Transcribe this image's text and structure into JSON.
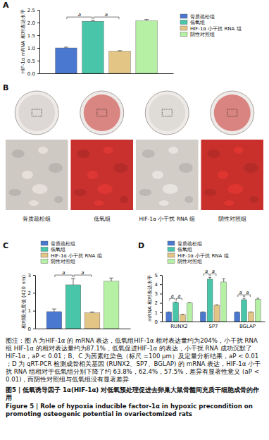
{
  "chart_data": [
    {
      "type": "bar",
      "panel": "A",
      "y_label": "HIF-1α mRNA 相对表达水平",
      "categories": [
        null
      ],
      "series": [
        {
          "name": "骨质疏松组",
          "color": "#4a78d0",
          "values": [
            1.0
          ],
          "errors": [
            0.03
          ]
        },
        {
          "name": "低氧组",
          "color": "#49c6a9",
          "values": [
            2.05
          ],
          "errors": [
            0.03
          ]
        },
        {
          "name": "HIF-1α 小干扰 RNA 组",
          "color": "#e3c586",
          "values": [
            0.87
          ],
          "errors": [
            0.02
          ]
        },
        {
          "name": "阴性对照组",
          "color": "#b5f0a5",
          "values": [
            2.07
          ],
          "errors": [
            0.05
          ]
        }
      ],
      "ylim": [
        0,
        2.5
      ],
      "yticks": [
        {
          "value": 0,
          "label": "0.0"
        },
        0.5,
        {
          "value": 1,
          "label": "1.0"
        },
        1.5,
        {
          "value": 2,
          "label": "2.0"
        },
        2.5
      ],
      "tick_labels": "y",
      "legend": "right",
      "significance": [
        {
          "label": "a",
          "category": 0,
          "pair": [
            0,
            1
          ]
        },
        {
          "label": "a",
          "category": 0,
          "pair": [
            1,
            2
          ]
        }
      ]
    },
    {
      "type": "bar",
      "panel": "C",
      "y_label": "相对吸光度值 (420 nm)",
      "categories": [
        null
      ],
      "series": [
        {
          "name": "骨质疏松组",
          "color": "#4a78d0",
          "values": [
            0.95
          ],
          "errors": [
            0.15
          ]
        },
        {
          "name": "低氧组",
          "color": "#49c6a9",
          "values": [
            2.45
          ],
          "errors": [
            0.35
          ]
        },
        {
          "name": "HIF-1α 小干扰 RNA 组",
          "color": "#e3c586",
          "values": [
            0.88
          ],
          "errors": [
            0.05
          ]
        },
        {
          "name": "阴性对照组",
          "color": "#b5f0a5",
          "values": [
            2.65
          ],
          "errors": [
            0.18
          ]
        }
      ],
      "ylim": [
        0,
        3
      ],
      "yticks": [
        0,
        1,
        2,
        3
      ],
      "tick_labels": "y",
      "legend": "top",
      "significance": [
        {
          "label": "a",
          "category": 0,
          "pair": [
            0,
            1
          ]
        },
        {
          "label": "a",
          "category": 0,
          "pair": [
            1,
            2
          ]
        }
      ]
    },
    {
      "type": "bar",
      "panel": "D",
      "y_label": "mRNA 相对表达水平",
      "categories": [
        "RUNX2",
        "SP7",
        "BGLAP"
      ],
      "series": [
        {
          "name": "骨质疏松组",
          "color": "#4a78d0",
          "values": [
            1.0,
            1.0,
            1.0
          ],
          "errors": [
            0.03,
            0.04,
            0.03
          ]
        },
        {
          "name": "低氧组",
          "color": "#49c6a9",
          "values": [
            2.05,
            4.55,
            2.35
          ],
          "errors": [
            0.05,
            0.2,
            0.15
          ]
        },
        {
          "name": "HIF-1α 小干扰 RNA 组",
          "color": "#e3c586",
          "values": [
            0.75,
            1.75,
            1.0
          ],
          "errors": [
            0.03,
            0.05,
            0.03
          ]
        },
        {
          "name": "阴性对照组",
          "color": "#b5f0a5",
          "values": [
            2.0,
            4.25,
            2.4
          ],
          "errors": [
            0.04,
            0.35,
            0.1
          ]
        }
      ],
      "ylim": [
        0,
        5
      ],
      "yticks": [
        0,
        1,
        2,
        3,
        4,
        5
      ],
      "legend": "top",
      "significance": [
        {
          "label": "a",
          "category": 0,
          "pair": [
            0,
            1
          ]
        },
        {
          "label": "a",
          "category": 0,
          "pair": [
            1,
            2
          ]
        },
        {
          "label": "a",
          "category": 1,
          "pair": [
            0,
            1
          ]
        },
        {
          "label": "a",
          "category": 1,
          "pair": [
            1,
            2
          ]
        },
        {
          "label": "a",
          "category": 2,
          "pair": [
            0,
            1
          ]
        },
        {
          "label": "a",
          "category": 2,
          "pair": [
            1,
            2
          ]
        }
      ]
    }
  ],
  "panel_b": {
    "panel": "B",
    "images": [
      {
        "label": "骨质疏松组",
        "color": "#cfc9c4"
      },
      {
        "label": "低氧组",
        "color": "#c8312e"
      },
      {
        "label": "HIF-1α 小干扰 RNA 组",
        "color": "#d3cdc8"
      },
      {
        "label": "阴性对照组",
        "color": "#c9302c"
      }
    ]
  },
  "caption": "图注：图 A 为HIF-1α 的 mRNA 表达，低氧组HIF-1α 相对表达量约为204%，小干扰 RNA 组 HIF-1α 的相对表达量约为87.1%，低氧促进HIF-1α 的表达，小干扰 RNA 成功沉默了 HIF-1α，aP < 0.01；B、C 为茜素红染色（标尺 =100 μm）及定量分析结果，aP < 0.01；D 为 qRT-PCR 检测成骨相关基因 (RUNX2、SP7、BGLAP) 的 mRNA 表达，HIF-1α 小干扰 RNA 组相对于低氧组分别下降了约 63.8%，62.4%，57.5%，差异有显著性意义 (aP < 0.01)，而阴性对照组与低氧组没有显著差异",
  "figure_title": "图5 | 低氧诱导因子 1α(HIF-1α) 对低氧预处理促进去卵巢大鼠骨髓间充质干细胞成骨的作用",
  "figure_title_en": "Figure 5 | Role of hypoxia inducible factor-1α in hypoxic precondition on promoting osteogenic potential in ovariectomized rats"
}
